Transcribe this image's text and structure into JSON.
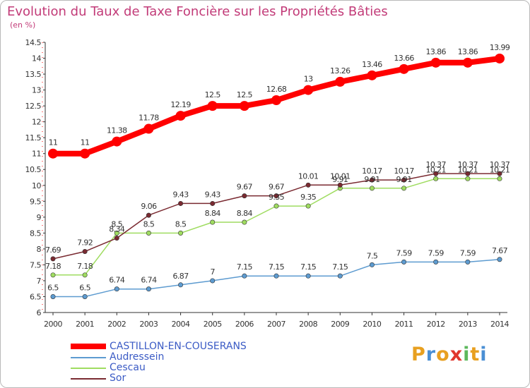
{
  "title": "Evolution du Taux de Taxe Foncière sur les Propriétés Bâties",
  "unit_label": "(en %)",
  "logo_text": "Proxiti",
  "chart_data": {
    "type": "line",
    "x": [
      2000,
      2001,
      2002,
      2003,
      2004,
      2005,
      2006,
      2007,
      2008,
      2009,
      2010,
      2011,
      2012,
      2013,
      2014
    ],
    "ylim": [
      6,
      14.5
    ],
    "yticks": [
      "6",
      "6.5",
      "7",
      "7.5",
      "8",
      "8.5",
      "9",
      "9.5",
      "10",
      "10.5",
      "11",
      "11.5",
      "12",
      "12.5",
      "13",
      "13.5",
      "14",
      "14.5"
    ],
    "xticks": [
      "2000",
      "2001",
      "2002",
      "2003",
      "2004",
      "2005",
      "2006",
      "2007",
      "2008",
      "2009",
      "2010",
      "2011",
      "2012",
      "2013",
      "2014"
    ],
    "grid": false,
    "legend_position": "bottom-left",
    "series": [
      {
        "name": "CASTILLON-EN-COUSERANS",
        "color": "#ff0000",
        "values": [
          11,
          11,
          11.38,
          11.78,
          12.19,
          12.5,
          12.5,
          12.68,
          13,
          13.26,
          13.46,
          13.66,
          13.86,
          13.86,
          13.99
        ],
        "labels": [
          "11",
          "11",
          "11.38",
          "11.78",
          "12.19",
          "12.5",
          "12.5",
          "12.68",
          "13",
          "13.26",
          "13.46",
          "13.66",
          "13.86",
          "13.86",
          "13.99"
        ],
        "thick": true
      },
      {
        "name": "Audressein",
        "color": "#5d9bd0",
        "values": [
          6.5,
          6.5,
          6.74,
          6.74,
          6.87,
          7,
          7.15,
          7.15,
          7.15,
          7.15,
          7.5,
          7.59,
          7.59,
          7.59,
          7.67
        ],
        "labels": [
          "6.5",
          "6.5",
          "6.74",
          "6.74",
          "6.87",
          "7",
          "7.15",
          "7.15",
          "7.15",
          "7.15",
          "7.5",
          "7.59",
          "7.59",
          "7.59",
          "7.67"
        ],
        "thick": false
      },
      {
        "name": "Cescau",
        "color": "#9fdc60",
        "values": [
          7.18,
          7.18,
          8.5,
          8.5,
          8.5,
          8.84,
          8.84,
          9.35,
          9.35,
          9.91,
          9.91,
          9.91,
          10.21,
          10.21,
          10.21
        ],
        "labels": [
          "7.18",
          "7.18",
          "8.5",
          "8.5",
          "8.5",
          "8.84",
          "8.84",
          "9.35",
          "9.35",
          "9.91",
          "9.91",
          "9.91",
          "10.21",
          "10.21",
          "10.21"
        ],
        "thick": false
      },
      {
        "name": "Sor",
        "color": "#7a2a31",
        "values": [
          7.69,
          7.92,
          8.34,
          9.06,
          9.43,
          9.43,
          9.67,
          9.67,
          10.01,
          10.01,
          10.17,
          10.17,
          10.37,
          10.37,
          10.37
        ],
        "labels": [
          "7.69",
          "7.92",
          "8.34",
          "9.06",
          "9.43",
          "9.43",
          "9.67",
          "9.67",
          "10.01",
          "10.01",
          "10.17",
          "10.17",
          "10.37",
          "10.37",
          "10.37"
        ],
        "thick": false
      }
    ]
  }
}
